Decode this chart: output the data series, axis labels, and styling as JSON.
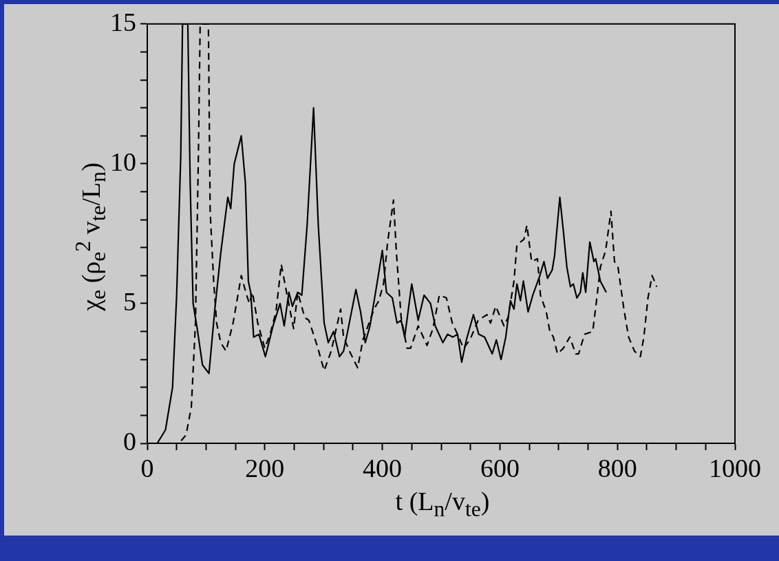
{
  "chart_data": {
    "type": "line",
    "xlabel": "t  (L$_{n}$/v$_{te}$)",
    "ylabel": "χ$_{e}$  (ρ$_{e}$$^{2}$ v$_{te}$/L$_{n}$)",
    "marker": "none",
    "xlim": [
      0,
      1000
    ],
    "ylim": [
      0,
      15
    ],
    "xticks": [
      0,
      {
        "value": 50,
        "label": null
      },
      {
        "value": 100,
        "label": null
      },
      {
        "value": 150,
        "label": null
      },
      200,
      {
        "value": 250,
        "label": null
      },
      {
        "value": 300,
        "label": null
      },
      {
        "value": 350,
        "label": null
      },
      400,
      {
        "value": 450,
        "label": null
      },
      {
        "value": 500,
        "label": null
      },
      {
        "value": 550,
        "label": null
      },
      600,
      {
        "value": 650,
        "label": null
      },
      {
        "value": 700,
        "label": null
      },
      {
        "value": 750,
        "label": null
      },
      800,
      {
        "value": 850,
        "label": null
      },
      {
        "value": 900,
        "label": null
      },
      {
        "value": 950,
        "label": null
      },
      1000
    ],
    "yticks": [
      0,
      {
        "value": 1,
        "label": null
      },
      {
        "value": 2,
        "label": null
      },
      {
        "value": 3,
        "label": null
      },
      {
        "value": 4,
        "label": null
      },
      5,
      {
        "value": 6,
        "label": null
      },
      {
        "value": 7,
        "label": null
      },
      {
        "value": 8,
        "label": null
      },
      {
        "value": 9,
        "label": null
      },
      10,
      {
        "value": 11,
        "label": null
      },
      {
        "value": 12,
        "label": null
      },
      {
        "value": 13,
        "label": null
      },
      {
        "value": 14,
        "label": null
      },
      15
    ],
    "series": [
      {
        "color": "#000000",
        "line_style": "solid",
        "x": [
          0,
          17,
          31,
          43,
          50,
          57,
          60,
          69,
          73,
          78,
          85,
          94,
          105,
          115,
          125,
          137,
          142,
          148,
          160,
          167,
          172,
          176,
          181,
          190,
          201,
          214,
          226,
          233,
          241,
          247,
          256,
          263,
          272,
          283,
          291,
          301,
          308,
          317,
          327,
          334,
          340,
          355,
          363,
          371,
          379,
          390,
          400,
          407,
          417,
          425,
          432,
          438,
          450,
          461,
          471,
          482,
          490,
          503,
          511,
          520,
          528,
          535,
          543,
          555,
          564,
          574,
          587,
          594,
          602,
          610,
          618,
          624,
          629,
          635,
          640,
          648,
          656,
          668,
          675,
          681,
          689,
          693,
          702,
          708,
          714,
          720,
          725,
          731,
          737,
          741,
          746,
          753,
          760,
          763,
          771,
          781
        ],
        "values": [
          0,
          0,
          0.48,
          2.0,
          5.3,
          10.3,
          15,
          15,
          9.3,
          5.0,
          4.1,
          2.8,
          2.5,
          4.8,
          6.8,
          8.8,
          8.4,
          10.0,
          11.0,
          9.3,
          5.8,
          5.4,
          3.8,
          3.9,
          3.1,
          4.2,
          5.0,
          4.2,
          5.4,
          4.9,
          5.4,
          5.3,
          7.8,
          12.0,
          7.8,
          4.3,
          3.6,
          4.0,
          3.1,
          3.3,
          3.9,
          5.5,
          4.7,
          3.6,
          4.2,
          5.6,
          6.9,
          5.4,
          5.2,
          4.3,
          4.4,
          3.8,
          5.7,
          4.4,
          5.3,
          5.0,
          4.2,
          3.6,
          3.9,
          3.8,
          3.9,
          2.9,
          3.7,
          4.6,
          3.9,
          3.8,
          3.2,
          3.7,
          3.0,
          3.8,
          5.1,
          4.8,
          5.7,
          5.1,
          5.8,
          4.7,
          5.3,
          6.0,
          6.5,
          5.9,
          6.2,
          6.7,
          8.8,
          7.6,
          6.3,
          5.6,
          5.7,
          5.2,
          5.4,
          6.1,
          5.4,
          7.2,
          6.5,
          6.6,
          5.8,
          5.4
        ]
      },
      {
        "color": "#000000",
        "line_style": "dashed",
        "x": [
          0,
          54,
          66,
          75,
          82,
          87,
          90,
          104,
          107,
          113,
          118,
          125,
          134,
          146,
          160,
          169,
          174,
          179,
          188,
          200,
          209,
          219,
          228,
          237,
          249,
          256,
          268,
          275,
          289,
          301,
          313,
          329,
          334,
          344,
          358,
          367,
          386,
          394,
          402,
          409,
          419,
          424,
          432,
          442,
          448,
          461,
          476,
          486,
          497,
          509,
          519,
          528,
          538,
          549,
          563,
          578,
          584,
          593,
          607,
          614,
          624,
          629,
          641,
          646,
          654,
          664,
          669,
          679,
          685,
          691,
          698,
          708,
          719,
          729,
          734,
          744,
          758,
          765,
          771,
          780,
          789,
          795,
          801,
          811,
          819,
          829,
          839,
          845,
          852,
          859,
          867
        ],
        "values": [
          0,
          0,
          0.3,
          1.3,
          4.3,
          10.3,
          15,
          15,
          8.3,
          5.8,
          4.3,
          3.6,
          3.3,
          4.3,
          6.0,
          5.3,
          5.0,
          5.4,
          4.3,
          3.4,
          3.9,
          4.7,
          6.4,
          5.4,
          4.1,
          5.4,
          4.5,
          4.4,
          3.5,
          2.6,
          3.3,
          4.8,
          3.8,
          3.3,
          2.7,
          3.7,
          4.8,
          5.1,
          5.7,
          7.2,
          8.7,
          6.8,
          4.5,
          3.4,
          3.4,
          4.2,
          3.5,
          4.1,
          5.3,
          5.2,
          4.3,
          3.9,
          3.4,
          3.7,
          4.4,
          4.6,
          4.3,
          4.9,
          4.2,
          4.5,
          5.8,
          7.1,
          7.3,
          7.8,
          6.5,
          6.6,
          5.3,
          4.7,
          4.0,
          3.8,
          3.2,
          3.4,
          3.8,
          3.2,
          3.2,
          3.9,
          4.0,
          5.2,
          6.3,
          6.9,
          8.3,
          6.5,
          6.3,
          4.8,
          3.8,
          3.3,
          3.1,
          3.8,
          5.2,
          6.0,
          5.6
        ]
      }
    ]
  }
}
